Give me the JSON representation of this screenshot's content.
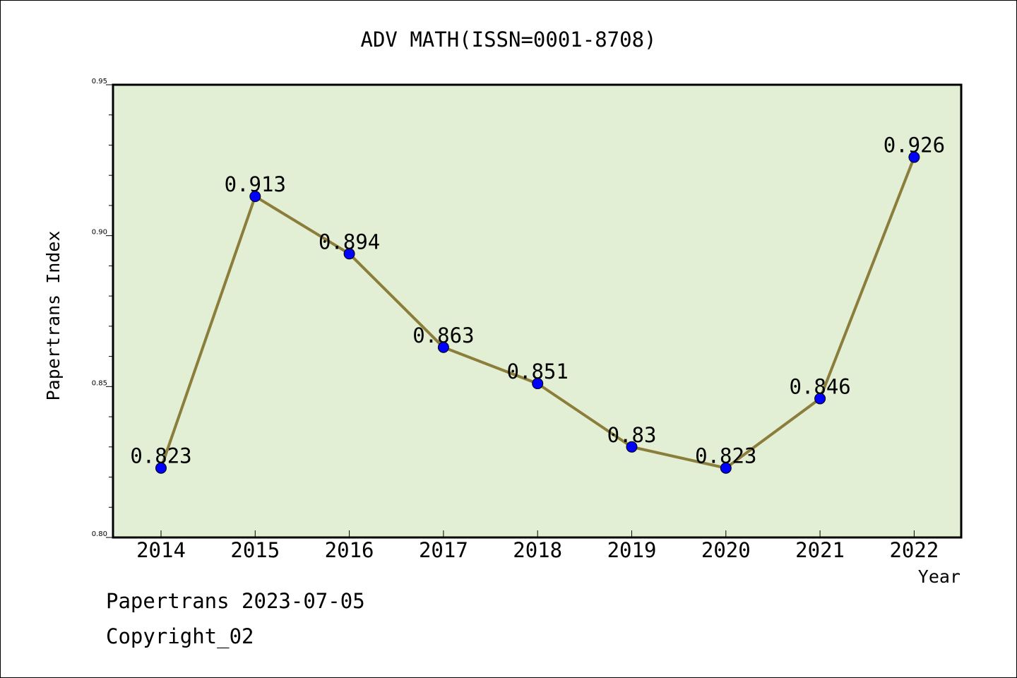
{
  "chart_data": {
    "type": "line",
    "title": "ADV MATH(ISSN=0001-8708)",
    "xlabel": "Year",
    "ylabel": "Papertrans Index",
    "categories": [
      "2014",
      "2015",
      "2016",
      "2017",
      "2018",
      "2019",
      "2020",
      "2021",
      "2022"
    ],
    "series": [
      {
        "values": [
          0.823,
          0.913,
          0.894,
          0.863,
          0.851,
          0.83,
          0.823,
          0.846,
          0.926
        ]
      }
    ],
    "data_labels": [
      "0.823",
      "0.913",
      "0.894",
      "0.863",
      "0.851",
      "0.83",
      "0.823",
      "0.846",
      "0.926"
    ],
    "ylim": [
      0.8,
      0.95
    ],
    "yticks": [
      0.8,
      0.85,
      0.9,
      0.95
    ],
    "ytick_labels": [
      "0.80",
      "0.85",
      "0.90",
      "0.95"
    ],
    "grid": false,
    "colors": {
      "plot_background": "#e2efd4",
      "line": "#8b7d3a",
      "marker": "#0000ff"
    }
  },
  "footer": {
    "date_text": "Papertrans 2023-07-05",
    "copyright_text": "Copyright_02"
  }
}
